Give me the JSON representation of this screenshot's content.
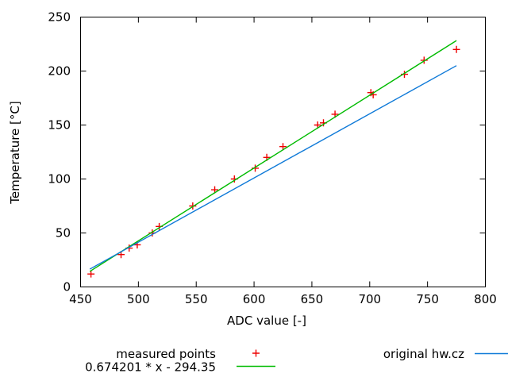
{
  "chart_data": {
    "type": "scatter",
    "title": "",
    "xlabel": "ADC value [-]",
    "ylabel": "Temperature [°C]",
    "xlim": [
      450,
      800
    ],
    "ylim": [
      0,
      250
    ],
    "xticks": [
      "450",
      "500",
      "550",
      "600",
      "650",
      "700",
      "750",
      "800"
    ],
    "yticks": [
      "0",
      "50",
      "100",
      "150",
      "200",
      "250"
    ],
    "grid": false,
    "legend_position": "bottom-outside",
    "series": [
      {
        "name": "measured points",
        "kind": "points",
        "marker": "plus",
        "color": "#ee0000",
        "points": [
          [
            459,
            12
          ],
          [
            485,
            30
          ],
          [
            492,
            36
          ],
          [
            499,
            39
          ],
          [
            512,
            50
          ],
          [
            518,
            56
          ],
          [
            547,
            75
          ],
          [
            566,
            90
          ],
          [
            583,
            100
          ],
          [
            601,
            110
          ],
          [
            611,
            120
          ],
          [
            625,
            130
          ],
          [
            655,
            150
          ],
          [
            660,
            152
          ],
          [
            670,
            160
          ],
          [
            701,
            180
          ],
          [
            703,
            178
          ],
          [
            730,
            197
          ],
          [
            747,
            210
          ],
          [
            775,
            220
          ]
        ]
      },
      {
        "name": "0.674201 * x - 294.35",
        "kind": "line",
        "color": "#00bb00",
        "points": [
          [
            458,
            14.4
          ],
          [
            775,
            228.2
          ]
        ]
      },
      {
        "name": "original hw.cz",
        "kind": "line",
        "color": "#0f7ad8",
        "points": [
          [
            458,
            16.5
          ],
          [
            775,
            205
          ]
        ]
      }
    ]
  }
}
